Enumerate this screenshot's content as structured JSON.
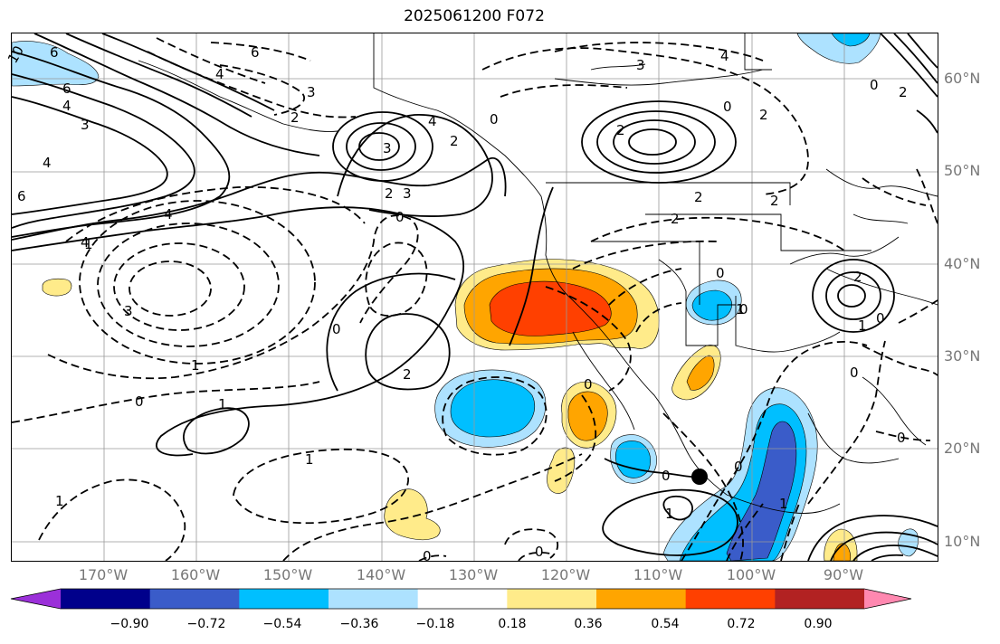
{
  "title": "2025061200 F072",
  "lat_labels": [
    "60°N",
    "50°N",
    "40°N",
    "30°N",
    "20°N",
    "10°N"
  ],
  "lon_labels": [
    "170°W",
    "160°W",
    "150°W",
    "140°W",
    "130°W",
    "120°W",
    "110°W",
    "100°W",
    "90°W"
  ],
  "colorbar": {
    "ticks": [
      "−0.90",
      "−0.72",
      "−0.54",
      "−0.36",
      "−0.18",
      "0.18",
      "0.36",
      "0.54",
      "0.72",
      "0.90"
    ],
    "colors": [
      "#9b30d9",
      "#00008b",
      "#3a5cc9",
      "#00bfff",
      "#ade2ff",
      "#ffffff",
      "#ffeb8a",
      "#ffa500",
      "#ff4000",
      "#b22222",
      "#ff88b0"
    ]
  },
  "contour_labels": [
    "10",
    "6",
    "6",
    "4",
    "3",
    "4",
    "6",
    "4",
    "3",
    "2",
    "6",
    "4",
    "2",
    "3",
    "2",
    "0",
    "0",
    "3",
    "2",
    "4",
    "0",
    "2",
    "2",
    "2",
    "2",
    "3",
    "4",
    "1",
    "4",
    "3",
    "1",
    "0",
    "1",
    "1",
    "0",
    "2",
    "0",
    "1",
    "0",
    "1",
    "0",
    "0",
    "0",
    "0",
    "1",
    "0",
    "1",
    "0",
    "0",
    "1",
    "2",
    "0",
    "2",
    "0"
  ]
}
